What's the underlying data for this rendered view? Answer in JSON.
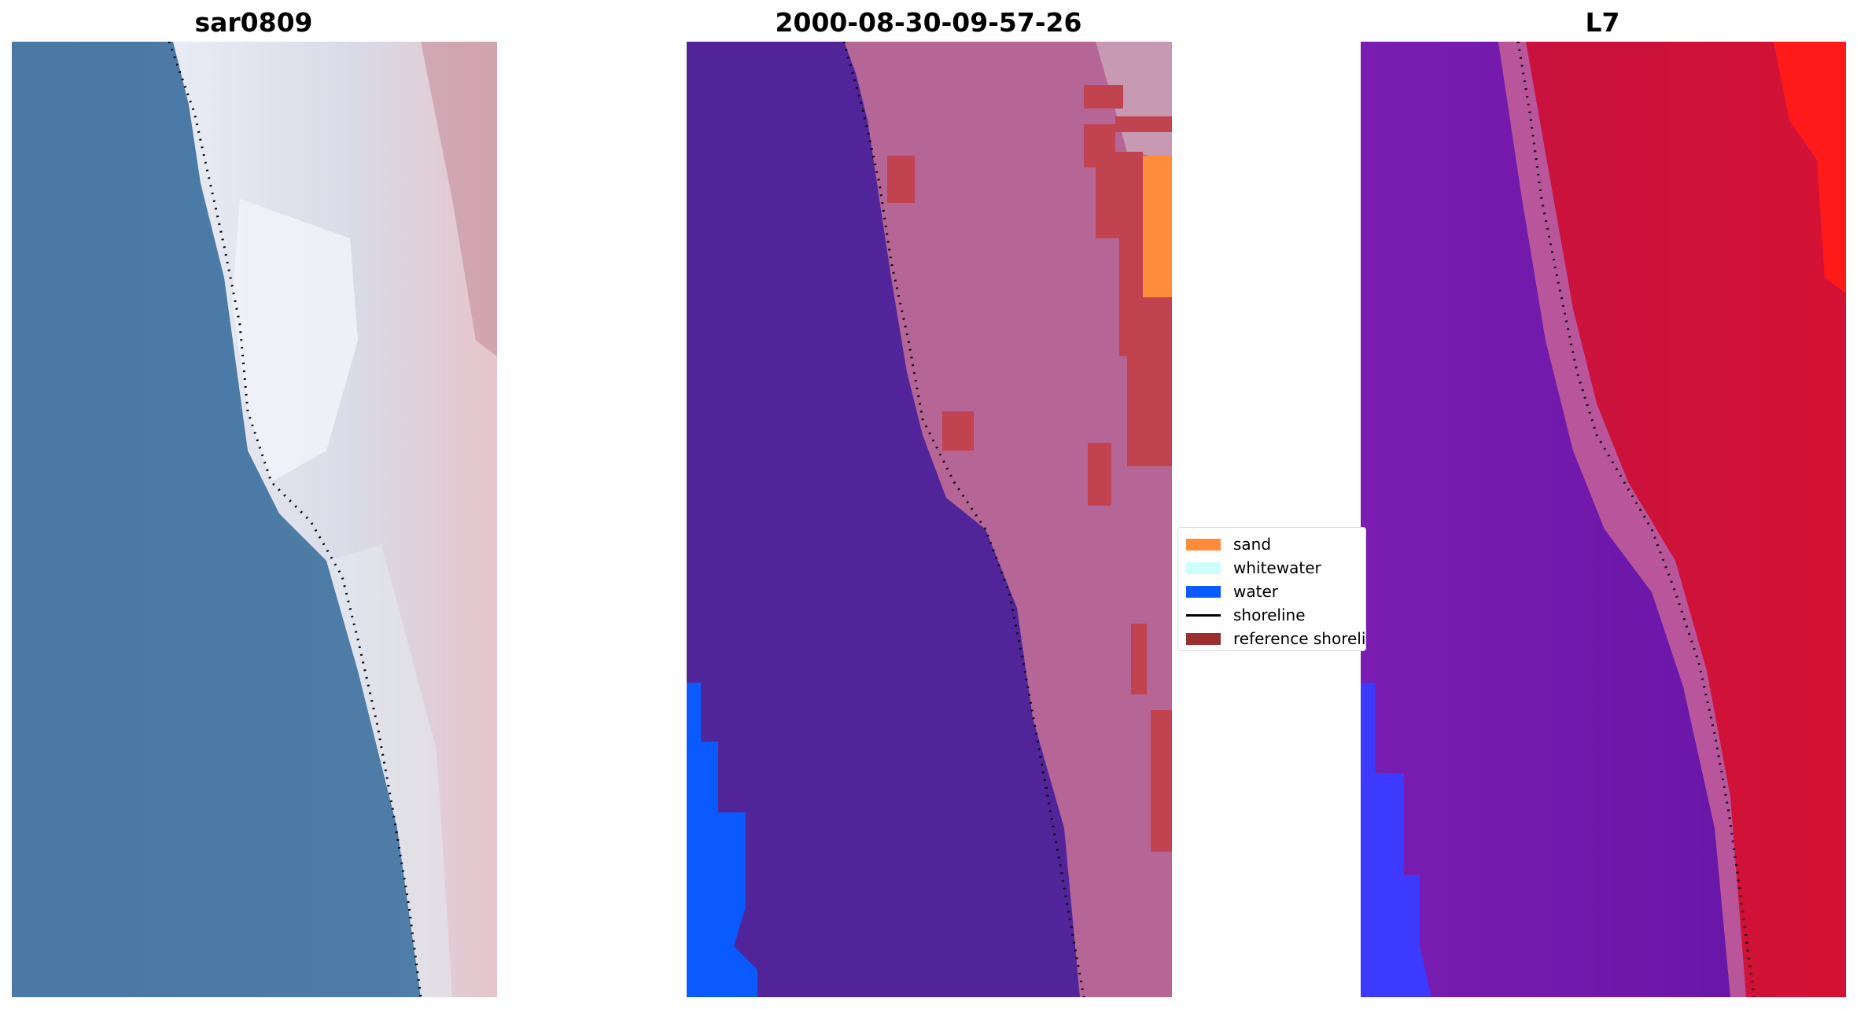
{
  "panels": [
    {
      "title": "sar0809",
      "kind": "rgb"
    },
    {
      "title": "2000-08-30-09-57-26",
      "kind": "classified"
    },
    {
      "title": "L7",
      "kind": "index"
    }
  ],
  "legend": {
    "items": [
      {
        "label": "sand",
        "color": "#ff8c3a",
        "type": "patch"
      },
      {
        "label": "whitewater",
        "color": "#ccfffa",
        "type": "patch"
      },
      {
        "label": "water",
        "color": "#0a5aff",
        "type": "patch"
      },
      {
        "label": "shoreline",
        "color": "#000000",
        "type": "line"
      },
      {
        "label": "reference shoreline",
        "color": "#9b2d2d",
        "type": "patch"
      }
    ]
  },
  "colors": {
    "sea_rgb": "#4a78a6",
    "beach_rgb": "#c8cde0",
    "classified_background": "#52249a",
    "classified_land": "#b56596",
    "classified_reference": "#c24350",
    "index_water": "#6e1aa8",
    "index_land": "#c7123e",
    "shoreline_points": "#000000"
  }
}
